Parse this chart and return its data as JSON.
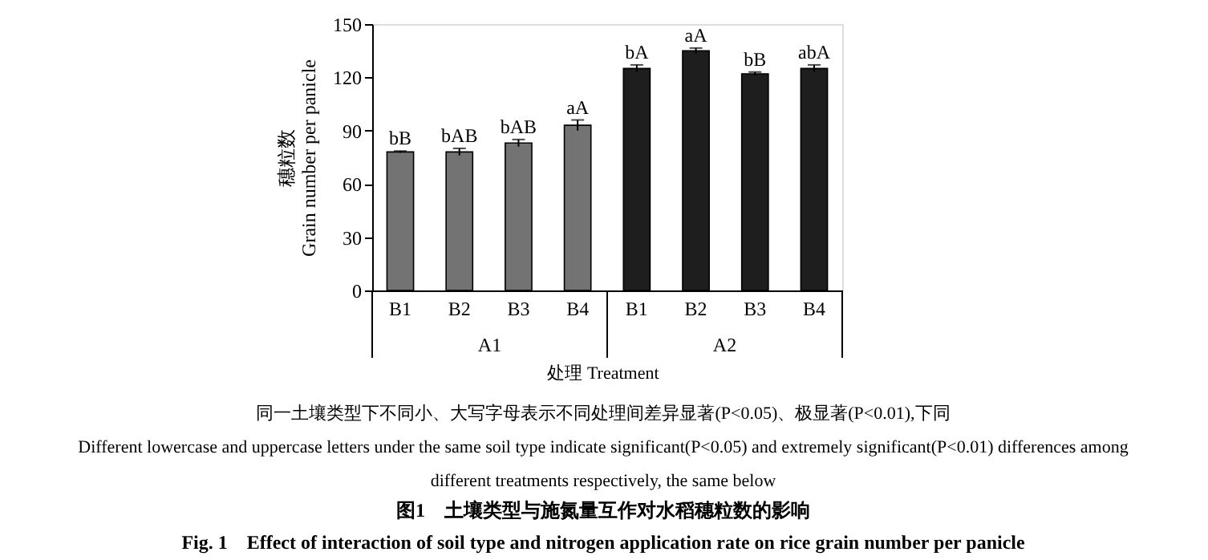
{
  "chart_data": {
    "type": "bar",
    "title": [
      "图1　土壤类型与施氮量互作对水稻穗粒数的影响",
      "Fig. 1　Effect of interaction of soil type and nitrogen application rate on rice grain number per panicle"
    ],
    "xlabel": "处理 Treatment",
    "ylabel": [
      "穗粒数",
      "Grain number per panicle"
    ],
    "categories": [
      "B1",
      "B2",
      "B3",
      "B4",
      "B1",
      "B2",
      "B3",
      "B4"
    ],
    "values": [
      78,
      78,
      83,
      93,
      125,
      135,
      122,
      125
    ],
    "errors": [
      0.5,
      2,
      2,
      3,
      2,
      1.5,
      1,
      2
    ],
    "colors": [
      "#737373",
      "#737373",
      "#737373",
      "#737373",
      "#1e1e1e",
      "#1e1e1e",
      "#1e1e1e",
      "#1e1e1e"
    ],
    "value_labels": [
      "bB",
      "bAB",
      "bAB",
      "aA",
      "bA",
      "aA",
      "bB",
      "abA"
    ],
    "annotations": [
      "A1",
      "A2",
      "同一土壤类型下不同小、大写字母表示不同处理间差异显著(P<0.05)、极显著(P<0.01),下同",
      "Different lowercase and uppercase letters under the same soil type indicate significant(P<0.05) and extremely significant(P<0.01) differences among",
      "different treatments respectively, the same below"
    ],
    "ylim": [
      0,
      150
    ],
    "yticks": [
      0,
      30,
      60,
      90,
      120,
      150
    ],
    "grid": false
  }
}
